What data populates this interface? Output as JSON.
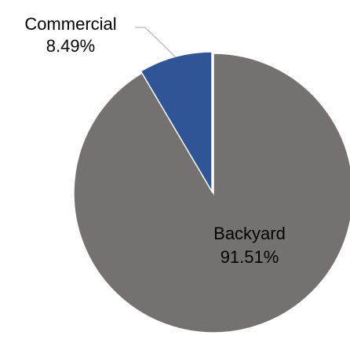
{
  "chart_data": {
    "type": "pie",
    "title": "",
    "slices": [
      {
        "name": "Backyard",
        "value": 91.51,
        "label": "91.51%",
        "color": "#767171"
      },
      {
        "name": "Commercial",
        "value": 8.49,
        "label": "8.49%",
        "color": "#2F5597"
      }
    ],
    "start_angle": "top",
    "direction": "counterclockwise",
    "slice_border_color": "#ffffff",
    "commercial_exploded": true,
    "legend": "none"
  }
}
